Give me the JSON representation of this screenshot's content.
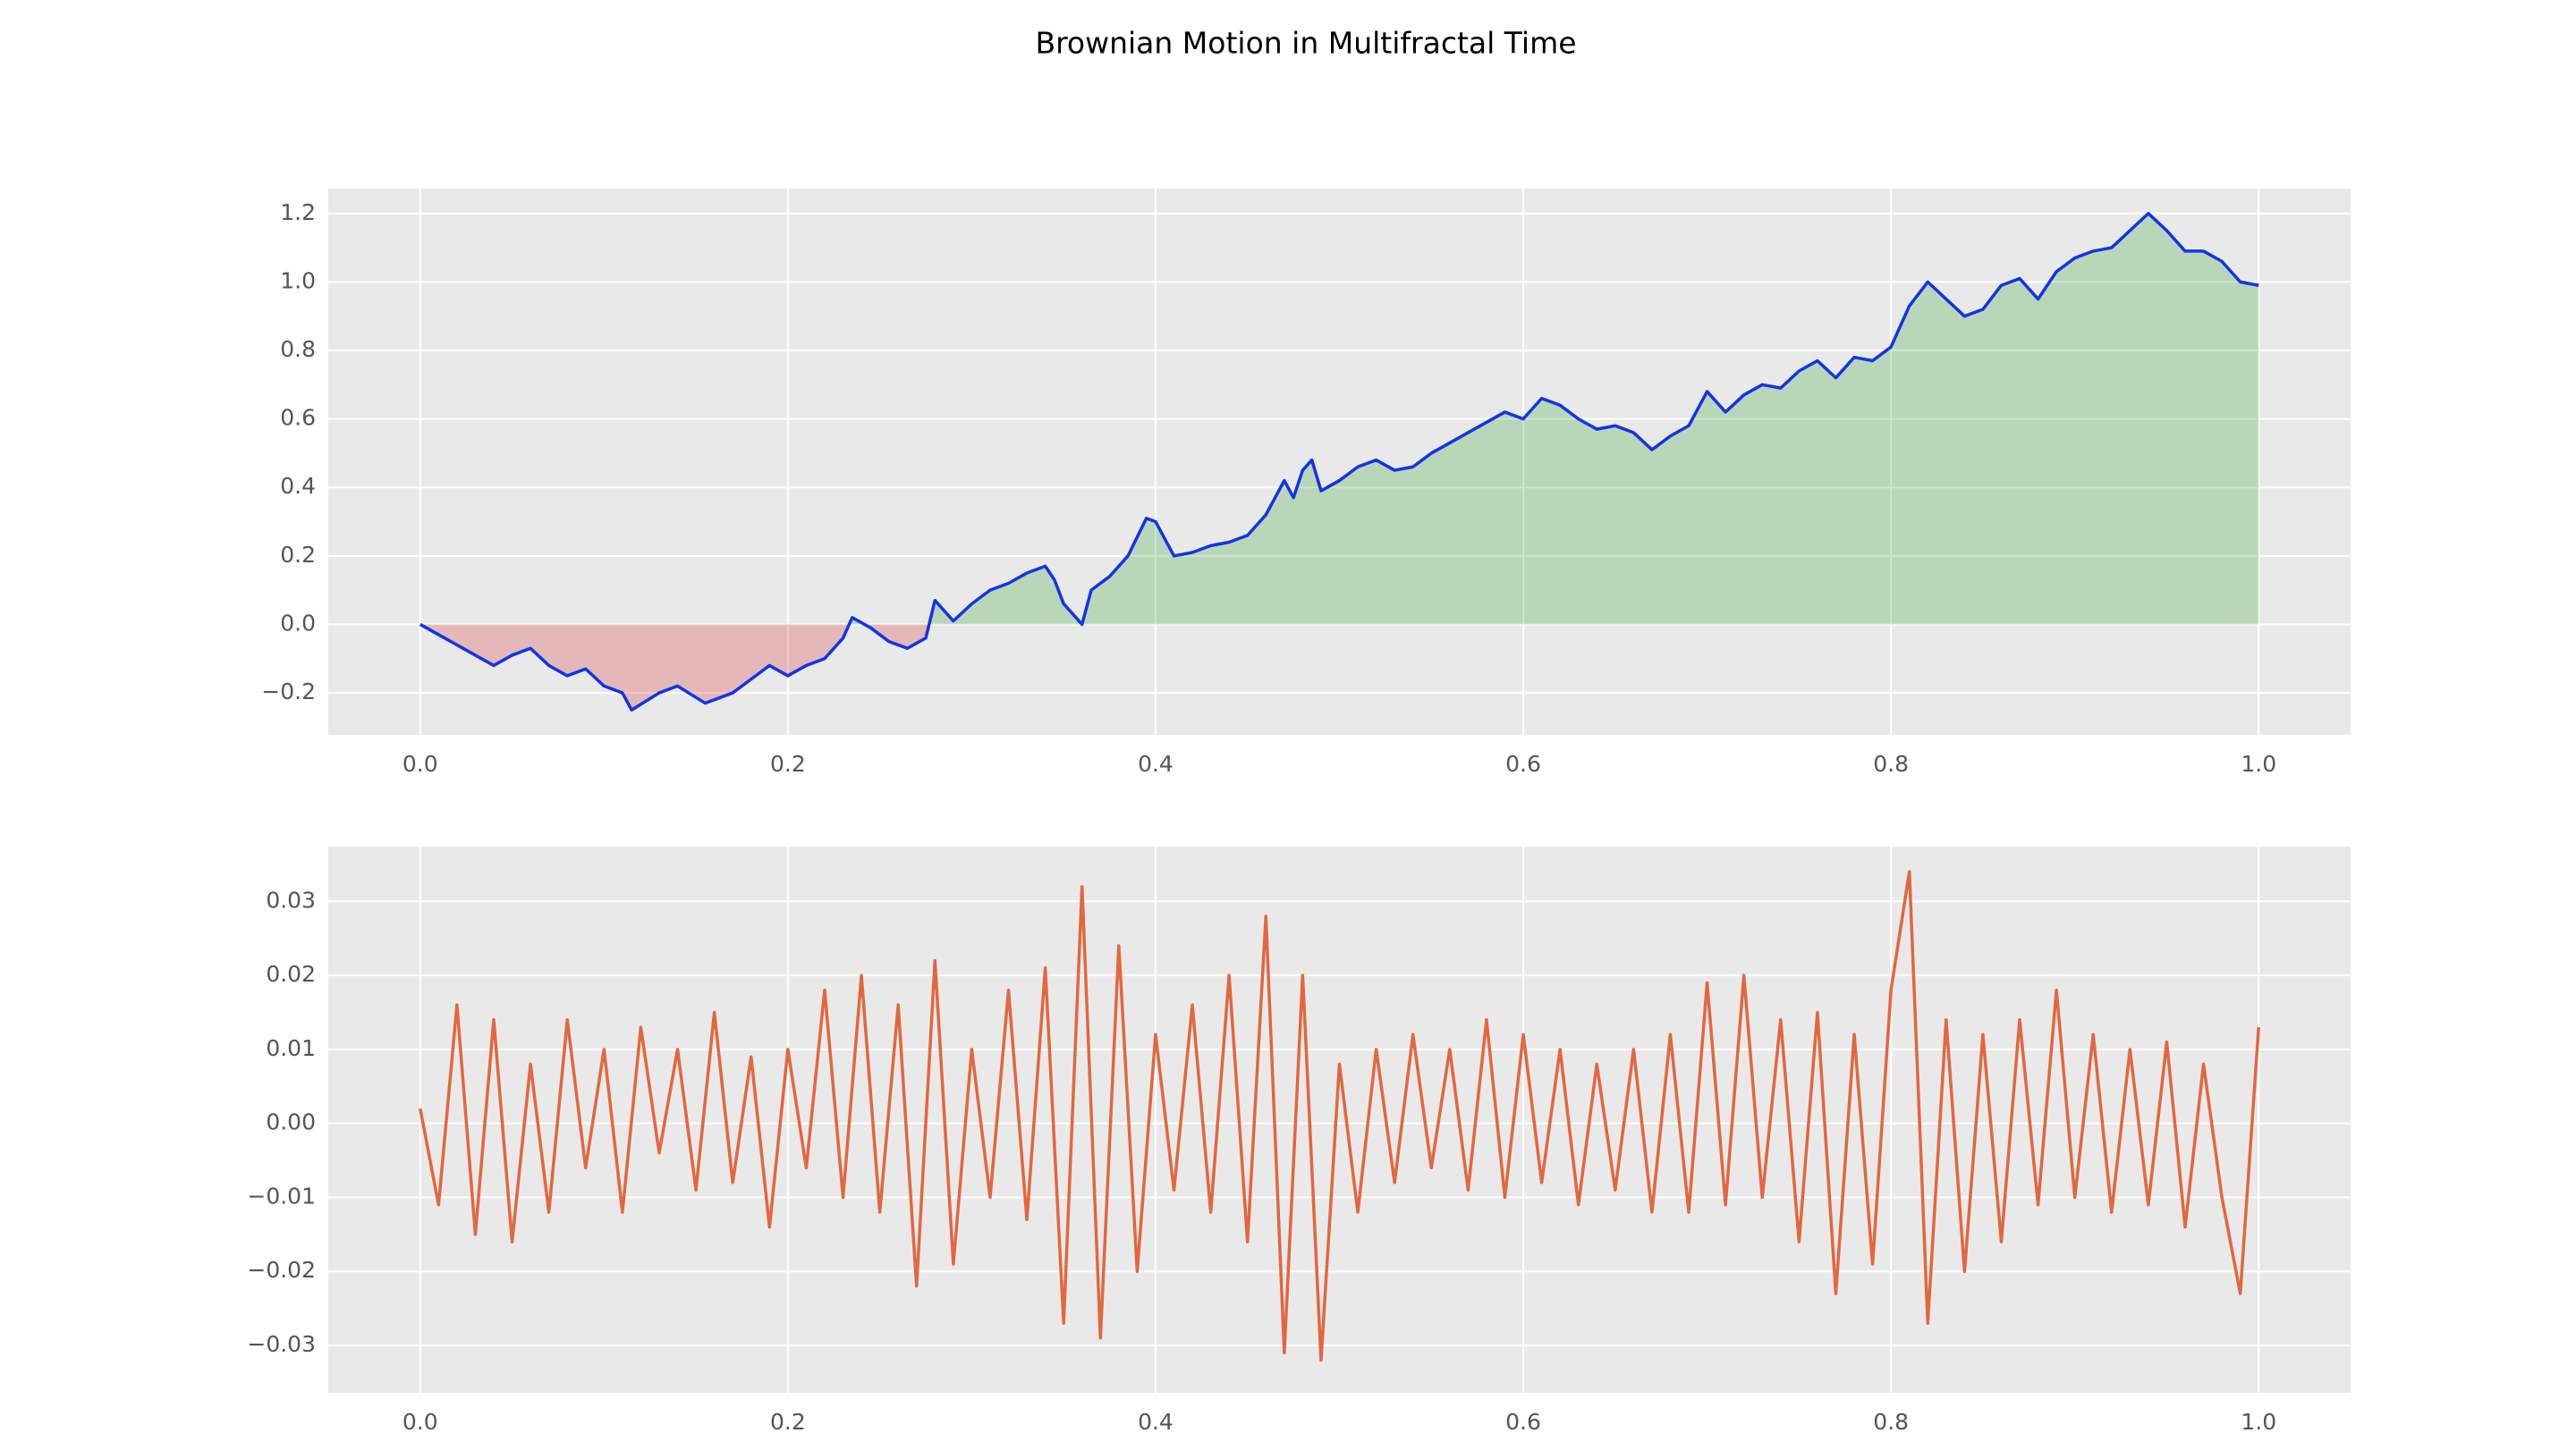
{
  "title": "Brownian Motion in Multifractal Time",
  "chart_data": [
    {
      "type": "line",
      "x": [
        0,
        0.01,
        0.02,
        0.03,
        0.04,
        0.05,
        0.06,
        0.07,
        0.08,
        0.09,
        0.1,
        0.11,
        0.115,
        0.13,
        0.14,
        0.155,
        0.17,
        0.18,
        0.19,
        0.2,
        0.21,
        0.22,
        0.23,
        0.235,
        0.245,
        0.255,
        0.265,
        0.275,
        0.28,
        0.29,
        0.3,
        0.31,
        0.32,
        0.33,
        0.34,
        0.345,
        0.35,
        0.36,
        0.365,
        0.375,
        0.385,
        0.395,
        0.4,
        0.41,
        0.42,
        0.43,
        0.44,
        0.45,
        0.46,
        0.47,
        0.475,
        0.48,
        0.485,
        0.49,
        0.5,
        0.51,
        0.52,
        0.53,
        0.54,
        0.55,
        0.56,
        0.57,
        0.58,
        0.59,
        0.6,
        0.61,
        0.62,
        0.63,
        0.64,
        0.65,
        0.66,
        0.67,
        0.68,
        0.69,
        0.7,
        0.71,
        0.72,
        0.73,
        0.74,
        0.75,
        0.76,
        0.77,
        0.78,
        0.79,
        0.8,
        0.81,
        0.82,
        0.83,
        0.84,
        0.85,
        0.86,
        0.87,
        0.88,
        0.89,
        0.9,
        0.91,
        0.92,
        0.93,
        0.94,
        0.95,
        0.96,
        0.97,
        0.98,
        0.99,
        1.0
      ],
      "values": [
        0,
        -0.03,
        -0.06,
        -0.09,
        -0.12,
        -0.09,
        -0.07,
        -0.12,
        -0.15,
        -0.13,
        -0.18,
        -0.2,
        -0.25,
        -0.2,
        -0.18,
        -0.23,
        -0.2,
        -0.16,
        -0.12,
        -0.15,
        -0.12,
        -0.1,
        -0.04,
        0.02,
        -0.01,
        -0.05,
        -0.07,
        -0.04,
        0.07,
        0.01,
        0.06,
        0.1,
        0.12,
        0.15,
        0.17,
        0.13,
        0.06,
        0.0,
        0.1,
        0.14,
        0.2,
        0.31,
        0.3,
        0.2,
        0.21,
        0.23,
        0.24,
        0.26,
        0.32,
        0.42,
        0.37,
        0.45,
        0.48,
        0.39,
        0.42,
        0.46,
        0.48,
        0.45,
        0.46,
        0.5,
        0.53,
        0.56,
        0.59,
        0.62,
        0.6,
        0.66,
        0.64,
        0.6,
        0.57,
        0.58,
        0.56,
        0.51,
        0.55,
        0.58,
        0.68,
        0.62,
        0.67,
        0.7,
        0.69,
        0.74,
        0.77,
        0.72,
        0.78,
        0.77,
        0.81,
        0.93,
        1.0,
        0.95,
        0.9,
        0.92,
        0.99,
        1.01,
        0.95,
        1.03,
        1.07,
        1.09,
        1.1,
        1.15,
        1.2,
        1.15,
        1.09,
        1.09,
        1.06,
        1.0,
        0.99
      ],
      "color": "#1234e6",
      "fill_above_color": "#2ca02c",
      "fill_below_color": "#d62728",
      "xlim": [
        -0.05,
        1.05
      ],
      "ylim": [
        -0.3225,
        1.2725
      ],
      "xticks": [
        {
          "value": 0,
          "label": "0.0"
        },
        0.2,
        0.4,
        0.6,
        0.8,
        {
          "value": 1,
          "label": "1.0"
        }
      ],
      "yticks": [
        {
          "value": -0.2,
          "label": "−0.2"
        },
        {
          "value": 0,
          "label": "0.0"
        },
        0.2,
        0.4,
        0.6,
        0.8,
        {
          "value": 1,
          "label": "1.0"
        },
        1.2
      ],
      "grid": true
    },
    {
      "type": "line",
      "x": [
        0,
        0.01,
        0.02,
        0.03,
        0.04,
        0.05,
        0.06,
        0.07,
        0.08,
        0.09,
        0.1,
        0.11,
        0.12,
        0.13,
        0.14,
        0.15,
        0.16,
        0.17,
        0.18,
        0.19,
        0.2,
        0.21,
        0.22,
        0.23,
        0.24,
        0.25,
        0.26,
        0.27,
        0.28,
        0.29,
        0.3,
        0.31,
        0.32,
        0.33,
        0.34,
        0.35,
        0.36,
        0.37,
        0.38,
        0.39,
        0.4,
        0.41,
        0.42,
        0.43,
        0.44,
        0.45,
        0.46,
        0.47,
        0.48,
        0.49,
        0.5,
        0.51,
        0.52,
        0.53,
        0.54,
        0.55,
        0.56,
        0.57,
        0.58,
        0.59,
        0.6,
        0.61,
        0.62,
        0.63,
        0.64,
        0.65,
        0.66,
        0.67,
        0.68,
        0.69,
        0.7,
        0.71,
        0.72,
        0.73,
        0.74,
        0.75,
        0.76,
        0.77,
        0.78,
        0.79,
        0.8,
        0.81,
        0.82,
        0.83,
        0.84,
        0.85,
        0.86,
        0.87,
        0.88,
        0.89,
        0.9,
        0.91,
        0.92,
        0.93,
        0.94,
        0.95,
        0.96,
        0.97,
        0.98,
        0.99,
        1.0
      ],
      "values": [
        0.002,
        -0.011,
        0.016,
        -0.015,
        0.014,
        -0.016,
        0.008,
        -0.012,
        0.014,
        -0.006,
        0.01,
        -0.012,
        0.013,
        -0.004,
        0.01,
        -0.009,
        0.015,
        -0.008,
        0.009,
        -0.014,
        0.01,
        -0.006,
        0.018,
        -0.01,
        0.02,
        -0.012,
        0.016,
        -0.022,
        0.022,
        -0.019,
        0.01,
        -0.01,
        0.018,
        -0.013,
        0.021,
        -0.027,
        0.032,
        -0.029,
        0.024,
        -0.02,
        0.012,
        -0.009,
        0.016,
        -0.012,
        0.02,
        -0.016,
        0.028,
        -0.031,
        0.02,
        -0.032,
        0.008,
        -0.012,
        0.01,
        -0.008,
        0.012,
        -0.006,
        0.01,
        -0.009,
        0.014,
        -0.01,
        0.012,
        -0.008,
        0.01,
        -0.011,
        0.008,
        -0.009,
        0.01,
        -0.012,
        0.012,
        -0.012,
        0.019,
        -0.011,
        0.02,
        -0.01,
        0.014,
        -0.016,
        0.015,
        -0.023,
        0.012,
        -0.019,
        0.018,
        0.034,
        -0.027,
        0.014,
        -0.02,
        0.012,
        -0.016,
        0.014,
        -0.011,
        0.018,
        -0.01,
        0.012,
        -0.012,
        0.01,
        -0.011,
        0.011,
        -0.014,
        0.008,
        -0.01,
        -0.023,
        0.013
      ],
      "color": "#e2673f",
      "xlim": [
        -0.05,
        1.05
      ],
      "ylim": [
        -0.0364,
        0.0374
      ],
      "xticks": [
        {
          "value": 0,
          "label": "0.0"
        },
        0.2,
        0.4,
        0.6,
        0.8,
        {
          "value": 1,
          "label": "1.0"
        }
      ],
      "yticks": [
        {
          "value": -0.03,
          "label": "−0.03"
        },
        {
          "value": -0.02,
          "label": "−0.02"
        },
        {
          "value": -0.01,
          "label": "−0.01"
        },
        {
          "value": 0,
          "label": "0.00"
        },
        0.01,
        0.02,
        0.03
      ],
      "grid": true
    }
  ]
}
